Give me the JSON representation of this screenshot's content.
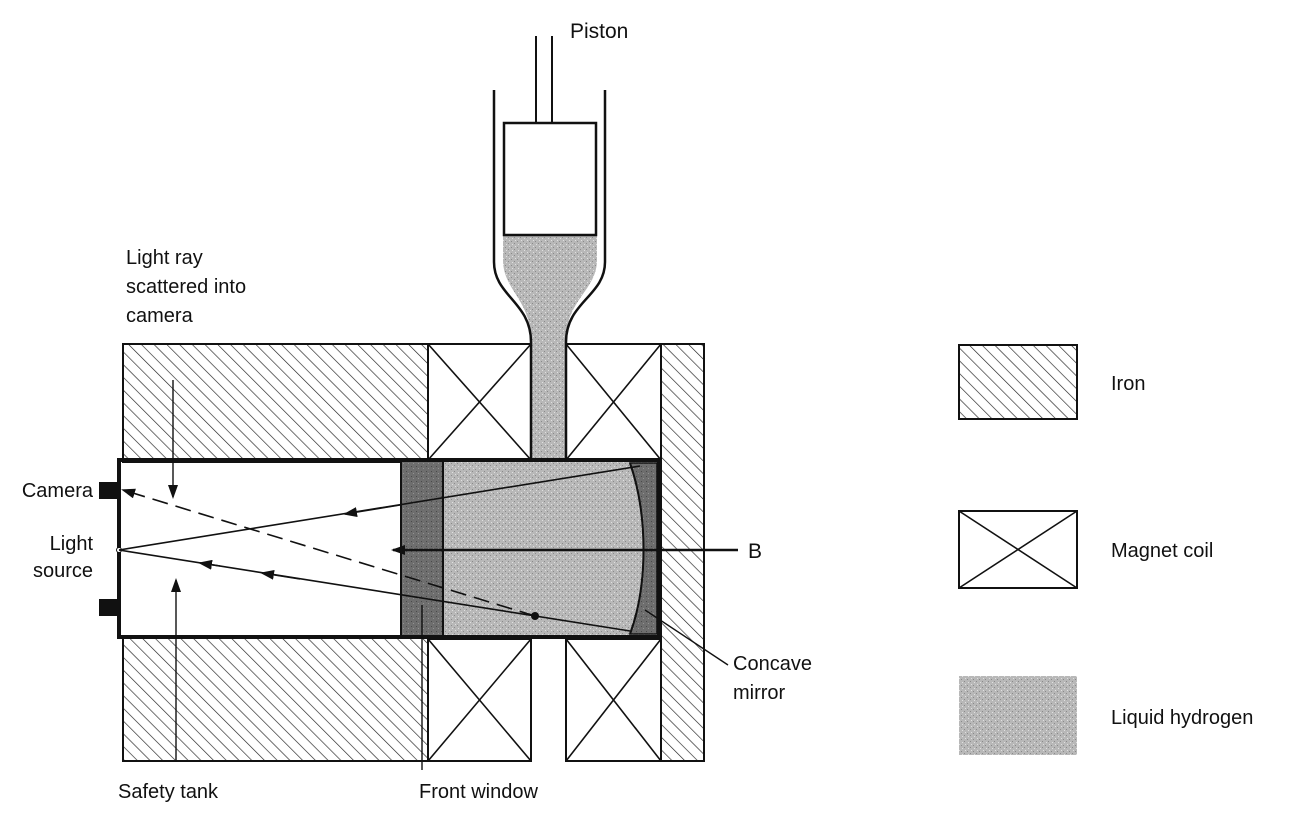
{
  "labels": {
    "piston": "Piston",
    "light_ray": [
      "Light ray",
      "scattered into",
      "camera"
    ],
    "camera": "Camera",
    "light_source": [
      "Light",
      "source"
    ],
    "field": "B",
    "concave_mirror": [
      "Concave",
      "mirror"
    ],
    "safety_tank": "Safety tank",
    "front_window": "Front window"
  },
  "legend": [
    {
      "key": "iron",
      "label": "Iron",
      "pattern": "hatch"
    },
    {
      "key": "magnet-coil",
      "label": "Magnet coil",
      "pattern": "cross"
    },
    {
      "key": "liquid-hydrogen",
      "label": "Liquid hydrogen",
      "pattern": "stipple"
    }
  ],
  "colors": {
    "ink": "#111111",
    "hydrogen": "#b8b8b8",
    "window": "#6e6e6e",
    "background": "#ffffff"
  }
}
